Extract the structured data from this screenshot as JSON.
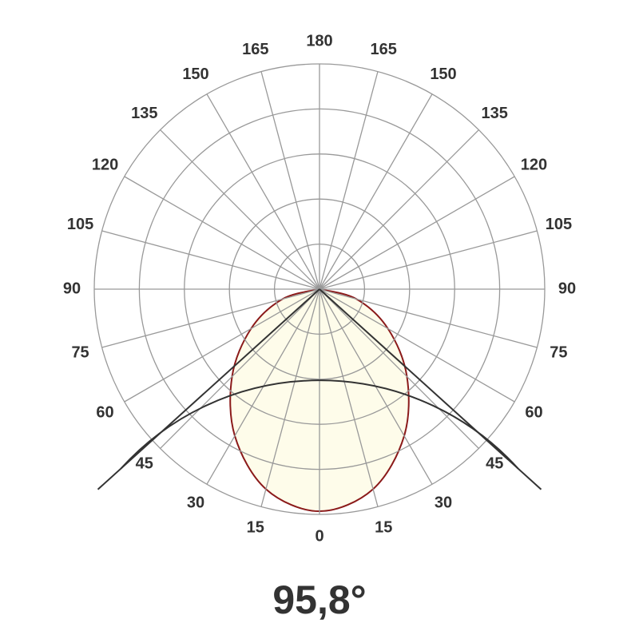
{
  "chart_data": {
    "type": "polar",
    "angle_ticks": [
      0,
      15,
      30,
      45,
      60,
      75,
      90,
      105,
      120,
      135,
      150,
      165,
      180
    ],
    "rlim": [
      0,
      100
    ],
    "rticks": [
      20,
      40,
      60,
      80,
      100
    ],
    "grid": true,
    "angles": [
      -90,
      -75,
      -60,
      -45,
      -30,
      -15,
      0,
      15,
      30,
      45,
      60,
      75,
      90
    ],
    "values": [
      0,
      17,
      35.1,
      54.9,
      75.2,
      91.9,
      98.6,
      91.9,
      75.2,
      54.9,
      35.1,
      17,
      0
    ],
    "color": "#8b1a1a",
    "fill": "#fdfbe3",
    "beam_angle": 95.8,
    "beam_label": "95,8°"
  }
}
